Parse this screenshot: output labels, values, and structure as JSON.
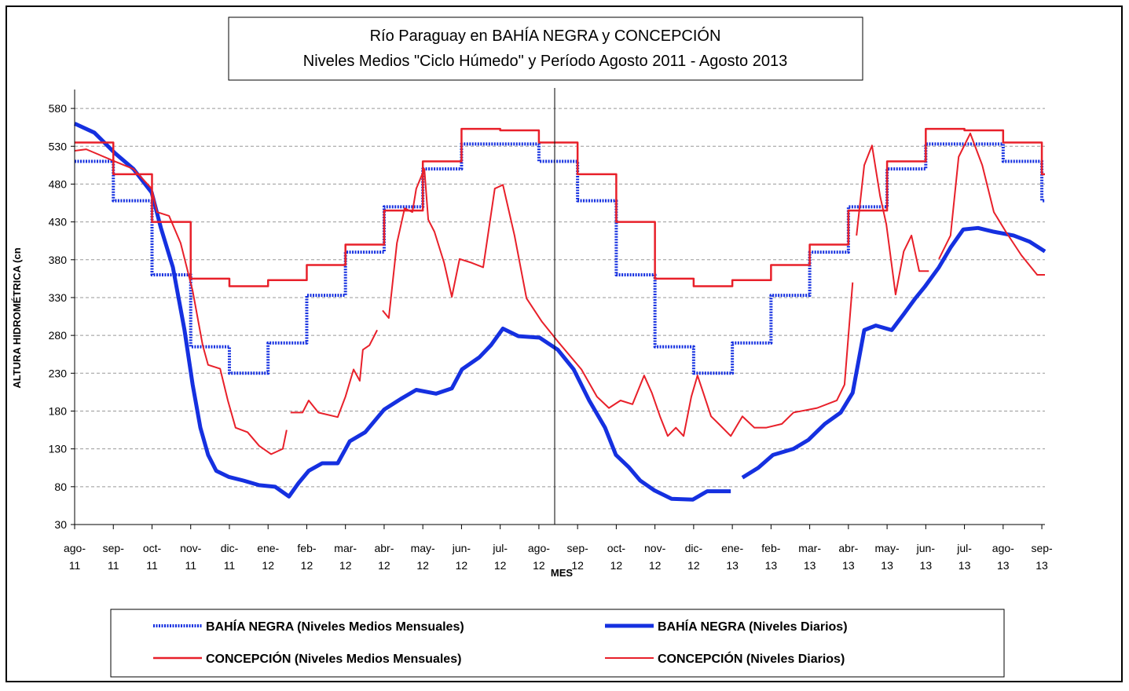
{
  "chart_data": {
    "type": "line",
    "title": "Río Paraguay en BAHÍA NEGRA y CONCEPCIÓN",
    "subtitle": "Niveles Medios \"Ciclo Húmedo\" y Período Agosto 2011 - Agosto 2013",
    "x_label": "MES",
    "y_label": "ALTURA HIDROMÉTRICA (cn",
    "xlim": [
      0,
      25.08
    ],
    "xticks": [
      {
        "value": 0,
        "label": "ago-11"
      },
      {
        "value": 1,
        "label": "sep-11"
      },
      {
        "value": 2,
        "label": "oct-11"
      },
      {
        "value": 3,
        "label": "nov-11"
      },
      {
        "value": 4,
        "label": "dic-11"
      },
      {
        "value": 5,
        "label": "ene-12"
      },
      {
        "value": 6,
        "label": "feb-12"
      },
      {
        "value": 7,
        "label": "mar-12"
      },
      {
        "value": 8,
        "label": "abr-12"
      },
      {
        "value": 9,
        "label": "may-12"
      },
      {
        "value": 10,
        "label": "jun-12"
      },
      {
        "value": 11,
        "label": "jul-12"
      },
      {
        "value": 12,
        "label": "ago-12"
      },
      {
        "value": 13,
        "label": "sep-12"
      },
      {
        "value": 14,
        "label": "oct-12"
      },
      {
        "value": 15,
        "label": "nov-12"
      },
      {
        "value": 16,
        "label": "dic-12"
      },
      {
        "value": 17,
        "label": "ene-13"
      },
      {
        "value": 18,
        "label": "feb-13"
      },
      {
        "value": 19,
        "label": "mar-13"
      },
      {
        "value": 20,
        "label": "abr-13"
      },
      {
        "value": 21,
        "label": "may-13"
      },
      {
        "value": 22,
        "label": "jun-13"
      },
      {
        "value": 23,
        "label": "jul-13"
      },
      {
        "value": 24,
        "label": "ago-13"
      },
      {
        "value": 25,
        "label": "sep-13"
      }
    ],
    "ylim": [
      30,
      605
    ],
    "yticks": [
      30,
      80,
      130,
      180,
      230,
      280,
      330,
      380,
      430,
      480,
      530,
      580
    ],
    "grid": true,
    "series": [
      {
        "name": "BAHÍA NEGRA (Niveles Medios Mensuales)",
        "color": "#1530e0",
        "line_style": "dotted",
        "step": true,
        "x": [
          0,
          1,
          2,
          3,
          4,
          5,
          6,
          7,
          8,
          9,
          10,
          11,
          12,
          13,
          14,
          15,
          16,
          17,
          18,
          19,
          20,
          21,
          22,
          23,
          24,
          25
        ],
        "values": [
          510,
          458,
          360,
          265,
          230,
          270,
          333,
          390,
          450,
          500,
          533,
          533,
          510,
          458,
          360,
          265,
          230,
          270,
          333,
          390,
          450,
          500,
          533,
          533,
          510,
          458
        ]
      },
      {
        "name": "BAHÍA NEGRA (Niveles Diarios)",
        "color": "#1530e0",
        "line_style": "solid",
        "step": false,
        "x": [
          0,
          0.51,
          1.04,
          1.52,
          1.99,
          2.23,
          2.54,
          2.84,
          3.05,
          3.25,
          3.45,
          3.66,
          3.98,
          4.37,
          4.77,
          5.18,
          5.54,
          5.79,
          6.05,
          6.4,
          6.8,
          7.11,
          7.51,
          8.0,
          8.43,
          8.83,
          9.34,
          9.75,
          10.01,
          10.46,
          10.76,
          11.07,
          11.47,
          12.02,
          12.49,
          12.9,
          13.3,
          13.71,
          13.99,
          14.32,
          14.62,
          14.99,
          15.43,
          15.98,
          16.35,
          16.96,
          17.1,
          17.26,
          17.67,
          18.05,
          18.58,
          18.97,
          19.39,
          19.8,
          20.11,
          20.41,
          20.71,
          21.12,
          21.43,
          21.73,
          21.97,
          22.34,
          22.64,
          22.97,
          23.35,
          23.76,
          24.27,
          24.68,
          25.08
        ],
        "values": [
          560,
          548,
          521,
          500,
          469,
          422,
          370,
          287,
          215,
          158,
          122,
          101,
          93,
          88,
          82,
          80,
          67,
          85,
          101,
          111,
          111,
          140,
          152,
          182,
          196,
          208,
          203,
          210,
          235,
          251,
          267,
          289,
          279,
          277,
          261,
          235,
          194,
          158,
          122,
          106,
          88,
          75,
          64,
          63,
          74,
          74,
          null,
          92,
          105,
          122,
          130,
          142,
          163,
          178,
          204,
          287,
          293,
          287,
          308,
          329,
          344,
          370,
          396,
          420,
          422,
          417,
          412,
          404,
          391
        ]
      },
      {
        "name": "CONCEPCIÓN (Niveles Medios Mensuales)",
        "color": "#e8202a",
        "line_style": "solid",
        "step": true,
        "x": [
          0,
          1,
          2,
          3,
          4,
          5,
          6,
          7,
          8,
          9,
          10,
          11,
          12,
          13,
          14,
          15,
          16,
          17,
          18,
          19,
          20,
          21,
          22,
          23,
          24,
          25
        ],
        "values": [
          535,
          493,
          430,
          355,
          345,
          353,
          373,
          400,
          445,
          510,
          553,
          551,
          535,
          493,
          430,
          355,
          345,
          353,
          373,
          400,
          445,
          510,
          553,
          551,
          535,
          493
        ]
      },
      {
        "name": "CONCEPCIÓN (Niveles Diarios)",
        "color": "#e8202a",
        "line_style": "thin",
        "step": false,
        "x": [
          0,
          0.3,
          1.04,
          1.52,
          1.99,
          2.13,
          2.44,
          2.74,
          3.05,
          3.31,
          3.45,
          3.76,
          3.96,
          4.16,
          4.47,
          4.77,
          5.08,
          5.38,
          5.48,
          5.55,
          5.58,
          5.89,
          6.05,
          6.3,
          6.8,
          7.0,
          7.21,
          7.37,
          7.45,
          7.62,
          7.82,
          7.9,
          7.96,
          8.12,
          8.33,
          8.53,
          8.73,
          8.83,
          9.04,
          9.14,
          9.3,
          9.55,
          9.75,
          9.95,
          10.26,
          10.56,
          10.86,
          11.07,
          11.37,
          11.68,
          12.08,
          12.49,
          13.1,
          13.5,
          13.81,
          14.11,
          14.42,
          14.72,
          14.92,
          15.13,
          15.33,
          15.54,
          15.74,
          15.94,
          16.1,
          16.25,
          16.45,
          16.65,
          16.96,
          17.26,
          17.57,
          17.87,
          18.28,
          18.58,
          19.19,
          19.7,
          19.9,
          20.11,
          20.16,
          20.21,
          20.41,
          20.61,
          20.82,
          20.98,
          21.22,
          21.43,
          21.63,
          21.83,
          22.08,
          22.2,
          22.34,
          22.64,
          22.85,
          23.15,
          23.46,
          23.76,
          24.07,
          24.47,
          24.88,
          25.08
        ],
        "values": [
          524,
          526,
          510,
          500,
          474,
          443,
          438,
          402,
          339,
          267,
          241,
          236,
          194,
          158,
          152,
          134,
          123,
          130,
          155,
          null,
          178,
          178,
          194,
          178,
          172,
          199,
          235,
          220,
          261,
          267,
          287,
          null,
          313,
          303,
          402,
          448,
          443,
          474,
          500,
          433,
          417,
          376,
          331,
          381,
          376,
          370,
          474,
          479,
          412,
          329,
          298,
          272,
          235,
          199,
          184,
          194,
          189,
          227,
          204,
          173,
          147,
          158,
          147,
          199,
          227,
          204,
          173,
          163,
          147,
          173,
          158,
          158,
          163,
          178,
          184,
          194,
          215,
          350,
          null,
          412,
          505,
          531,
          464,
          427,
          334,
          391,
          412,
          365,
          365,
          null,
          381,
          412,
          516,
          547,
          505,
          443,
          417,
          386,
          360,
          360
        ]
      }
    ]
  }
}
